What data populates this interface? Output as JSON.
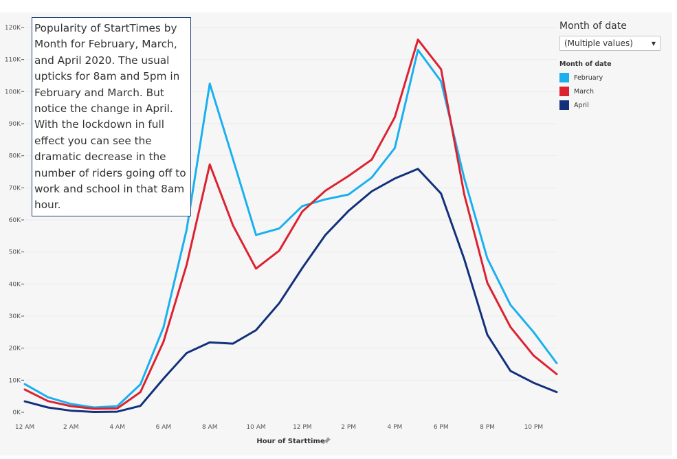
{
  "chart_data": {
    "type": "line",
    "xlabel": "Hour of Starttime",
    "ylabel": "",
    "ylim": [
      0,
      120000
    ],
    "yticks": [
      0,
      10000,
      20000,
      30000,
      40000,
      50000,
      60000,
      70000,
      80000,
      90000,
      100000,
      110000,
      120000
    ],
    "ytick_labels": [
      "0K",
      "10K",
      "20K",
      "30K",
      "40K",
      "50K",
      "60K",
      "70K",
      "80K",
      "90K",
      "100K",
      "110K",
      "120K"
    ],
    "categories": [
      "12 AM",
      "1 AM",
      "2 AM",
      "3 AM",
      "4 AM",
      "5 AM",
      "6 AM",
      "7 AM",
      "8 AM",
      "9 AM",
      "10 AM",
      "11 AM",
      "12 PM",
      "1 PM",
      "2 PM",
      "3 PM",
      "4 PM",
      "5 PM",
      "6 PM",
      "7 PM",
      "8 PM",
      "9 PM",
      "10 PM",
      "11 PM"
    ],
    "tick_labels": [
      "12 AM",
      "",
      "2 AM",
      "",
      "4 AM",
      "",
      "6 AM",
      "",
      "8 AM",
      "",
      "10 AM",
      "",
      "12 PM",
      "",
      "2 PM",
      "",
      "4 PM",
      "",
      "6 PM",
      "",
      "8 PM",
      "",
      "10 PM",
      ""
    ],
    "grid": true,
    "legend_position": "right",
    "series": [
      {
        "name": "February",
        "color": "#1ab0ef",
        "values": [
          8800,
          4700,
          2600,
          1500,
          1900,
          8700,
          26500,
          57000,
          102500,
          79000,
          55300,
          57300,
          64300,
          66400,
          67900,
          73200,
          82400,
          113000,
          103200,
          73000,
          48000,
          33500,
          25000,
          15300
        ]
      },
      {
        "name": "March",
        "color": "#dc2230",
        "values": [
          7100,
          3500,
          1900,
          1100,
          1200,
          6300,
          22000,
          46000,
          77300,
          58300,
          44800,
          50400,
          62600,
          69100,
          73700,
          78800,
          92000,
          116200,
          107000,
          68000,
          40400,
          26600,
          17700,
          11900
        ]
      },
      {
        "name": "April",
        "color": "#13317a",
        "values": [
          3400,
          1500,
          500,
          100,
          200,
          2000,
          10500,
          18500,
          21800,
          21400,
          25600,
          34000,
          45000,
          55300,
          62800,
          68900,
          72900,
          75900,
          68200,
          47800,
          24200,
          12900,
          9200,
          6300
        ]
      }
    ]
  },
  "annotation": {
    "text": "Popularity of StartTimes by Month for February, March, and April 2020.  The usual upticks for 8am and 5pm in February and March.  But notice the change in April. With the lockdown in full effect you can see the dramatic decrease in the number of riders going off to work and school in that 8am hour."
  },
  "filter": {
    "title": "Month of date",
    "selected_value": "(Multiple values)"
  },
  "legend": {
    "title": "Month of date",
    "items": [
      {
        "label": "February",
        "color": "#1ab0ef"
      },
      {
        "label": "March",
        "color": "#dc2230"
      },
      {
        "label": "April",
        "color": "#13317a"
      }
    ]
  }
}
